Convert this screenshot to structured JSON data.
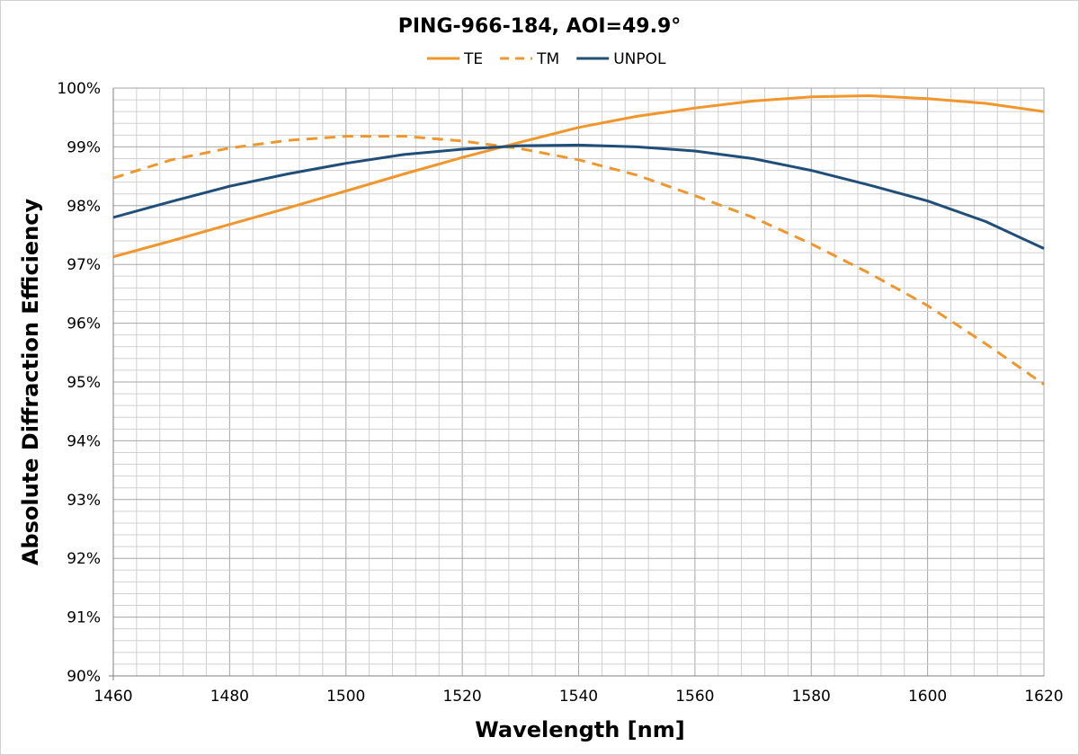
{
  "chart_data": {
    "type": "line",
    "title": "PING-966-184, AOI=49.9°",
    "xlabel": "Wavelength [nm]",
    "ylabel": "Absolute Diffraction Efficiency",
    "xlim": [
      1460,
      1620
    ],
    "ylim": [
      90,
      100
    ],
    "x_ticks": [
      "1460",
      "1480",
      "1500",
      "1520",
      "1540",
      "1560",
      "1580",
      "1600",
      "1620"
    ],
    "y_ticks": [
      "90%",
      "91%",
      "92%",
      "93%",
      "94%",
      "95%",
      "96%",
      "97%",
      "98%",
      "99%",
      "100%"
    ],
    "grid": true,
    "legend": "top",
    "x": [
      1460,
      1470,
      1480,
      1490,
      1500,
      1510,
      1520,
      1530,
      1540,
      1550,
      1560,
      1570,
      1580,
      1590,
      1600,
      1610,
      1620
    ],
    "series": [
      {
        "name": "TE",
        "color": "#F0962A",
        "dash": false,
        "values": [
          97.13,
          97.4,
          97.68,
          97.96,
          98.25,
          98.54,
          98.82,
          99.08,
          99.33,
          99.52,
          99.66,
          99.78,
          99.85,
          99.87,
          99.82,
          99.74,
          99.6
        ]
      },
      {
        "name": "TM",
        "color": "#F0962A",
        "dash": true,
        "values": [
          98.47,
          98.78,
          98.98,
          99.11,
          99.18,
          99.18,
          99.1,
          98.97,
          98.78,
          98.52,
          98.17,
          97.8,
          97.35,
          96.85,
          96.3,
          95.65,
          94.96
        ]
      },
      {
        "name": "UNPOL",
        "color": "#1F4E79",
        "dash": false,
        "values": [
          97.8,
          98.07,
          98.33,
          98.54,
          98.72,
          98.87,
          98.96,
          99.02,
          99.03,
          99.0,
          98.93,
          98.8,
          98.6,
          98.35,
          98.08,
          97.73,
          97.27
        ]
      }
    ]
  }
}
